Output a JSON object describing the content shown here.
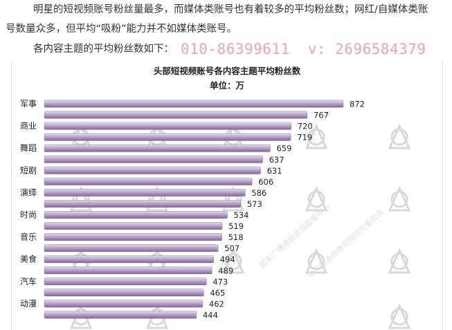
{
  "paragraphs": {
    "p1": "明星的短视频账号粉丝量最多，而媒体类账号也有着较多的平均粉丝数；网红/自媒体类账",
    "p2": "号数量众多，但平均“吸粉”能力并不如媒体类账号。",
    "p3_label": "各内容主题的平均粉丝数如下：",
    "phone": "010-86399611",
    "wechat": "v: 2696584379"
  },
  "watermark": {
    "text1": "国家广播电视总局监管中心",
    "text2": "中广联合会微视频短片委员会",
    "color": "#dedede"
  },
  "colors": {
    "bar_fill": "#b9a6cc",
    "bar_highlight": "#e4dbee",
    "bar_shadow": "#7d6a93"
  },
  "chart_data": {
    "type": "bar",
    "orientation": "horizontal",
    "title": "头部短视频账号各内容主题平均粉丝数",
    "subtitle": "单位：万",
    "categories": [
      "军事",
      "",
      "商业",
      "",
      "舞蹈",
      "",
      "短剧",
      "",
      "演绎",
      "",
      "时尚",
      "",
      "音乐",
      "",
      "美食",
      "",
      "汽车",
      "",
      "动漫",
      ""
    ],
    "values": [
      872,
      767,
      720,
      719,
      659,
      637,
      631,
      606,
      586,
      573,
      534,
      519,
      518,
      507,
      494,
      489,
      473,
      465,
      462,
      444
    ],
    "xlim": [
      0,
      880
    ],
    "grid": false,
    "legend": "none"
  }
}
